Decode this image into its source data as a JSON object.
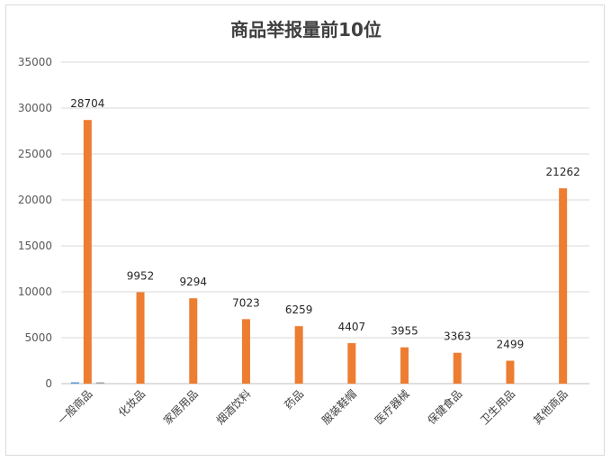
{
  "chart_data": {
    "type": "bar",
    "title": "商品举报量前10位",
    "categories": [
      "一般商品",
      "化妆品",
      "家居用品",
      "烟酒饮料",
      "药品",
      "服装鞋帽",
      "医疗器械",
      "保健食品",
      "卫生用品",
      "其他商品"
    ],
    "series": [
      {
        "values": [
          150,
          null,
          null,
          null,
          null,
          null,
          null,
          null,
          null,
          null
        ],
        "color": "#5b9bd5"
      },
      {
        "values": [
          28704,
          9952,
          9294,
          7023,
          6259,
          4407,
          3955,
          3363,
          2499,
          21262
        ],
        "color": "#ed7d31",
        "show_labels": true
      },
      {
        "values": [
          150,
          null,
          null,
          null,
          null,
          null,
          null,
          null,
          null,
          null
        ],
        "color": "#a5a5a5"
      }
    ],
    "ylim": [
      0,
      35000
    ],
    "yticks": [
      0,
      5000,
      10000,
      15000,
      20000,
      25000,
      30000,
      35000
    ],
    "grid": true,
    "legend": "none"
  }
}
